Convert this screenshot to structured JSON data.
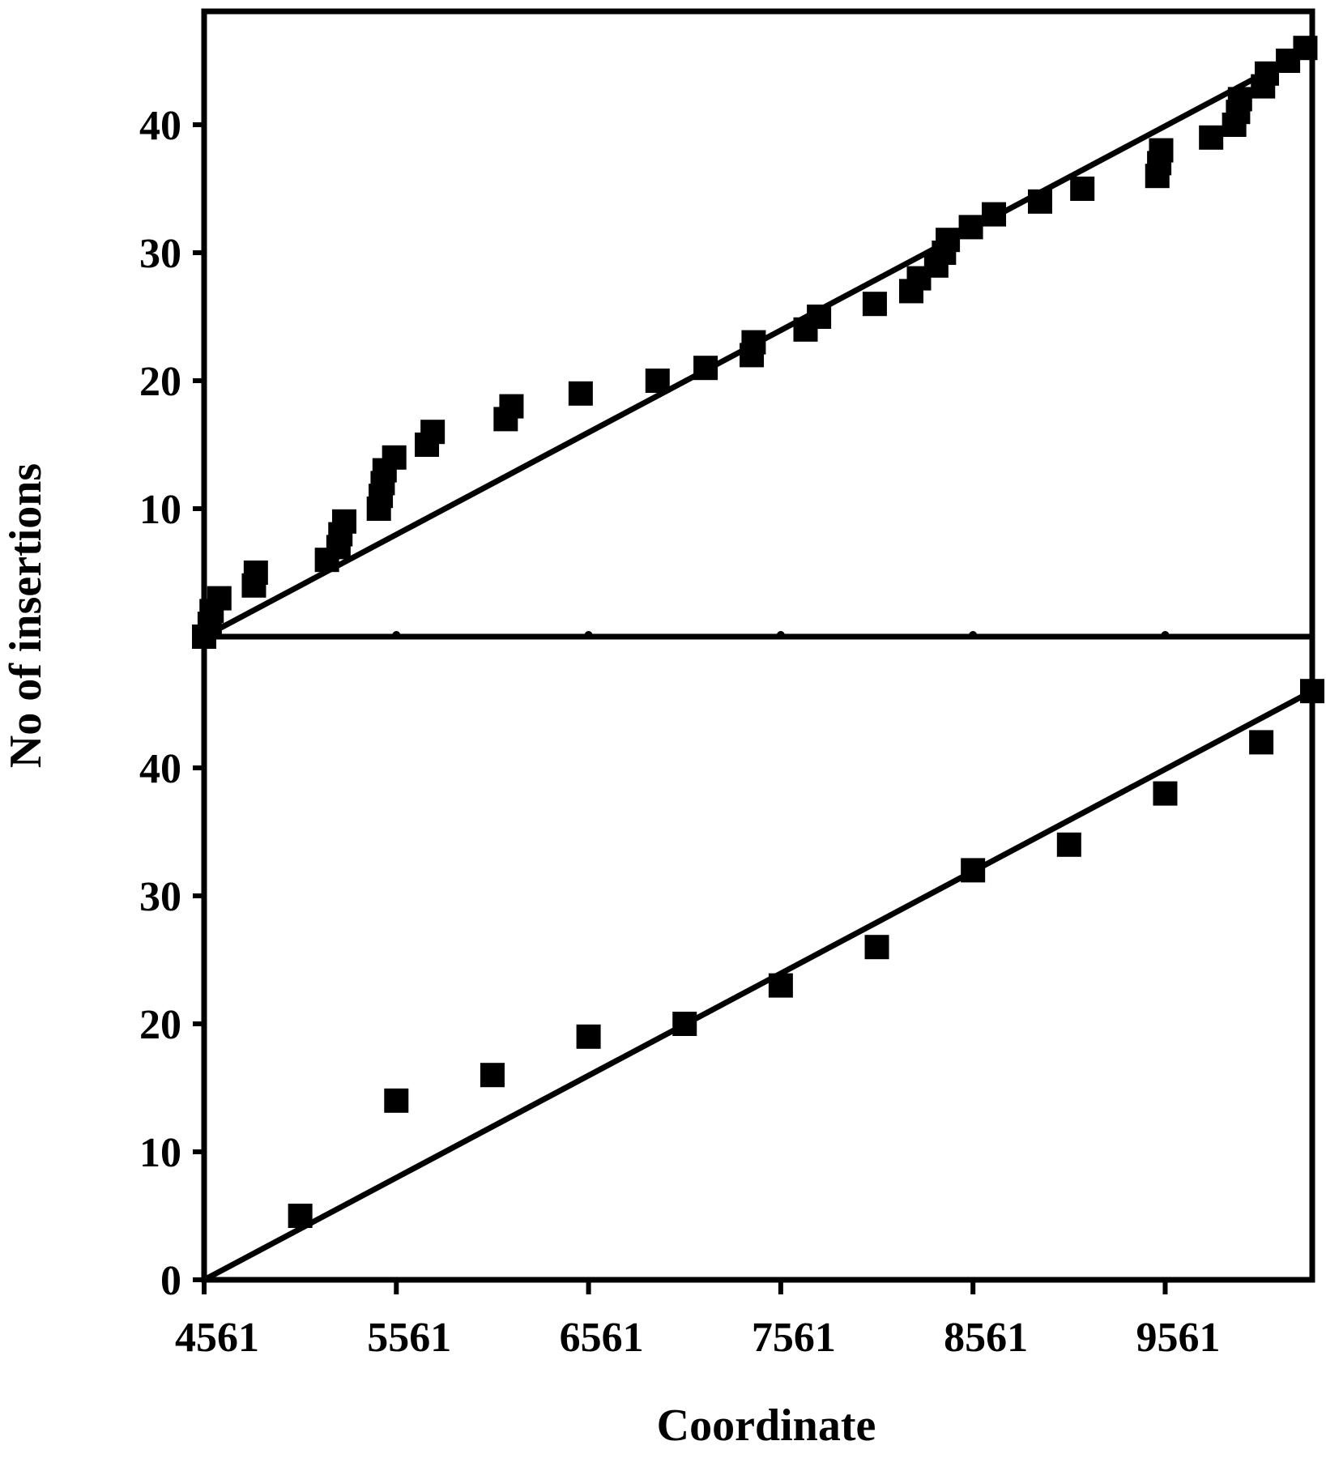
{
  "chart_data": {
    "type": "scatter",
    "xlabel": "Coordinate",
    "ylabel": "No of insertions",
    "x_ticks": [
      4561,
      5561,
      6561,
      7561,
      8561,
      9561
    ],
    "x_tick_labels": [
      "4561",
      "5561",
      "6561",
      "7561",
      "8561",
      "9561"
    ],
    "xlim": [
      4561,
      10326
    ],
    "panels": [
      {
        "id": "top",
        "ylim": [
          0,
          50
        ],
        "y_ticks": [
          10,
          20,
          30,
          40
        ],
        "y_tick_labels": [
          "10",
          "20",
          "30",
          "40"
        ],
        "trend_line": {
          "x": [
            4561,
            10326
          ],
          "y": [
            0,
            46
          ]
        },
        "points": [
          [
            4561,
            0
          ],
          [
            4590,
            1
          ],
          [
            4600,
            2
          ],
          [
            4640,
            3
          ],
          [
            4820,
            4
          ],
          [
            4830,
            5
          ],
          [
            5200,
            6
          ],
          [
            5260,
            7
          ],
          [
            5270,
            8
          ],
          [
            5290,
            9
          ],
          [
            5470,
            10
          ],
          [
            5480,
            11
          ],
          [
            5490,
            12
          ],
          [
            5500,
            13
          ],
          [
            5550,
            14
          ],
          [
            5720,
            15
          ],
          [
            5750,
            16
          ],
          [
            6130,
            17
          ],
          [
            6160,
            18
          ],
          [
            6520,
            19
          ],
          [
            6920,
            20
          ],
          [
            7170,
            21
          ],
          [
            7410,
            22
          ],
          [
            7420,
            23
          ],
          [
            7690,
            24
          ],
          [
            7760,
            25
          ],
          [
            8050,
            26
          ],
          [
            8240,
            27
          ],
          [
            8280,
            28
          ],
          [
            8370,
            29
          ],
          [
            8410,
            30
          ],
          [
            8430,
            31
          ],
          [
            8550,
            32
          ],
          [
            8670,
            33
          ],
          [
            8910,
            34
          ],
          [
            9130,
            35
          ],
          [
            9520,
            36
          ],
          [
            9530,
            37
          ],
          [
            9540,
            38
          ],
          [
            9800,
            39
          ],
          [
            9920,
            40
          ],
          [
            9940,
            41
          ],
          [
            9950,
            42
          ],
          [
            10070,
            43
          ],
          [
            10090,
            44
          ],
          [
            10200,
            45
          ],
          [
            10290,
            46
          ]
        ]
      },
      {
        "id": "bottom",
        "ylim": [
          0,
          50
        ],
        "y_ticks": [
          0,
          10,
          20,
          30,
          40
        ],
        "y_tick_labels": [
          "0",
          "10",
          "20",
          "30",
          "40"
        ],
        "trend_line": {
          "x": [
            4561,
            10326
          ],
          "y": [
            0,
            46
          ]
        },
        "points": [
          [
            5061,
            5
          ],
          [
            5561,
            14
          ],
          [
            6061,
            16
          ],
          [
            6561,
            19
          ],
          [
            7061,
            20
          ],
          [
            7561,
            23
          ],
          [
            8061,
            26
          ],
          [
            8561,
            32
          ],
          [
            9061,
            34
          ],
          [
            9561,
            38
          ],
          [
            10061,
            42
          ],
          [
            10326,
            46
          ]
        ]
      }
    ],
    "grid": false,
    "legend": "none",
    "marker": "filled-square",
    "marker_color": "#000000",
    "line_color": "#000000"
  }
}
